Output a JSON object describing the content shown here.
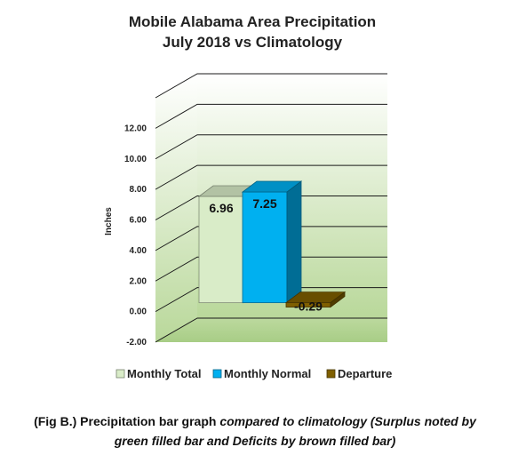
{
  "chart_data": {
    "type": "bar",
    "title_line1": "Mobile Alabama Area Precipitation",
    "title_line2": "July 2018 vs Climatology",
    "ylabel": "Inches",
    "xlabel": "",
    "ylim": [
      -2,
      14
    ],
    "ytick_labels": [
      "-2.00",
      "0.00",
      "2.00",
      "4.00",
      "6.00",
      "8.00",
      "10.00",
      "12.00"
    ],
    "grid": true,
    "legend_position": "bottom",
    "series": [
      {
        "name": "Monthly Total",
        "value": 6.96,
        "label": "6.96",
        "color": "#d9ecc8"
      },
      {
        "name": "Monthly Normal",
        "value": 7.25,
        "label": "7.25",
        "color": "#00b0f0"
      },
      {
        "name": "Departure",
        "value": -0.29,
        "label": "-0.29",
        "color": "#7f5f00"
      }
    ]
  },
  "caption": {
    "line1_plain": "(Fig B.) Precipitation bar graph ",
    "line1_italic": "compared to climatology (Surplus noted by",
    "line2_italic": "green filled bar and Deficits by brown filled bar)"
  }
}
